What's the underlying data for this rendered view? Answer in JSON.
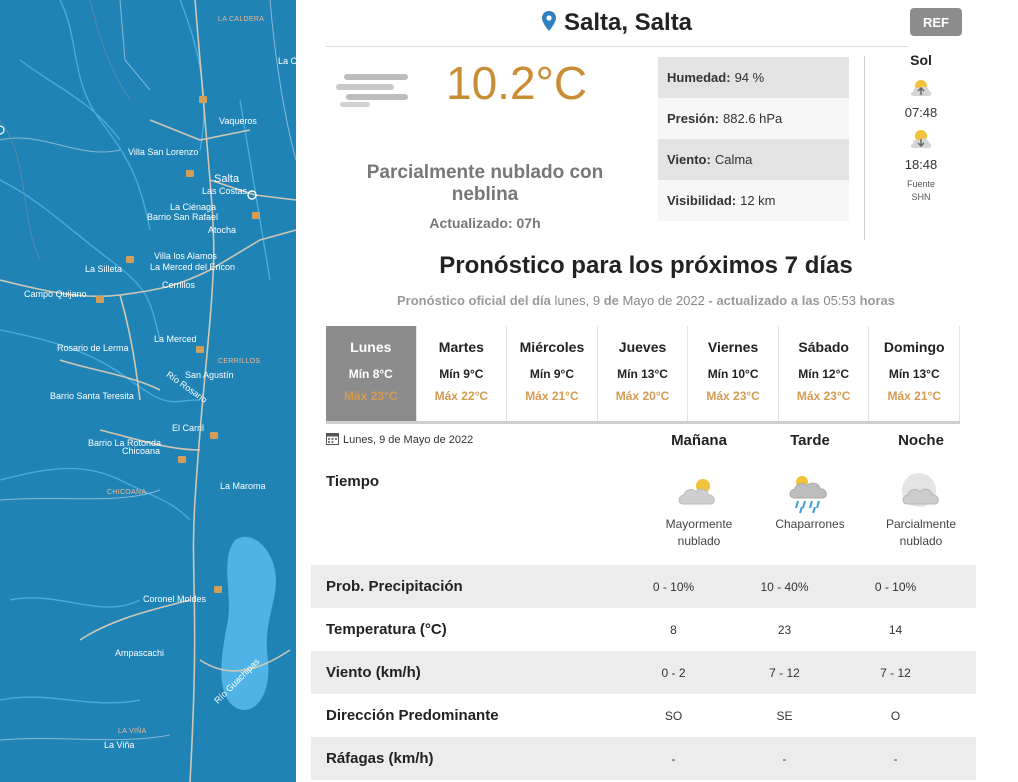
{
  "map": {
    "places": [
      {
        "name": "LA CALDERA",
        "style": "dim"
      },
      {
        "name": "La C",
        "style": "normal"
      },
      {
        "name": "Vaqueros",
        "style": "normal"
      },
      {
        "name": "Villa San Lorenzo",
        "style": "normal"
      },
      {
        "name": "Salta",
        "style": "big"
      },
      {
        "name": "Las Costas",
        "style": "normal"
      },
      {
        "name": "La Ciénaga",
        "style": "normal"
      },
      {
        "name": "Barrio San Rafael",
        "style": "normal"
      },
      {
        "name": "Atocha",
        "style": "normal"
      },
      {
        "name": "Villa los Alamos",
        "style": "normal"
      },
      {
        "name": "La Merced del Encon",
        "style": "normal"
      },
      {
        "name": "La Silleta",
        "style": "normal"
      },
      {
        "name": "Cerrillos",
        "style": "normal"
      },
      {
        "name": "Campo Quijano",
        "style": "normal"
      },
      {
        "name": "La Merced",
        "style": "normal"
      },
      {
        "name": "Rosario de Lerma",
        "style": "normal"
      },
      {
        "name": "CERRILLOS",
        "style": "dim"
      },
      {
        "name": "San Agustín",
        "style": "normal"
      },
      {
        "name": "Barrio Santa Teresita",
        "style": "normal"
      },
      {
        "name": "Río Rosario",
        "style": "normal"
      },
      {
        "name": "El Carril",
        "style": "normal"
      },
      {
        "name": "Barrio La Rotonda",
        "style": "normal"
      },
      {
        "name": "Chicoana",
        "style": "normal"
      },
      {
        "name": "CHICOANA",
        "style": "dim"
      },
      {
        "name": "La Maroma",
        "style": "normal"
      },
      {
        "name": "Coronel Moldes",
        "style": "normal"
      },
      {
        "name": "Ampascachi",
        "style": "normal"
      },
      {
        "name": "Río Guachipas",
        "style": "normal"
      },
      {
        "name": "LA VIÑA",
        "style": "dim"
      },
      {
        "name": "La Viña",
        "style": "normal"
      }
    ]
  },
  "header": {
    "city": "Salta, Salta",
    "ref_label": "REF"
  },
  "current": {
    "temperature": "10.2°C",
    "description": "Parcialmente nublado con neblina",
    "updated_label": "Actualizado:",
    "updated_value": "07h",
    "icon": "fog-icon"
  },
  "stats": [
    {
      "label": "Humedad:",
      "value": "94 %"
    },
    {
      "label": "Presión:",
      "value": "882.6 hPa"
    },
    {
      "label": "Viento:",
      "value": "Calma"
    },
    {
      "label": "Visibilidad:",
      "value": "12 km"
    }
  ],
  "sun": {
    "title": "Sol",
    "sunrise": "07:48",
    "sunset": "18:48",
    "source_line1": "Fuente",
    "source_line2": "SHN"
  },
  "forecast": {
    "title": "Pronóstico para los próximos 7 días",
    "sub_a": "Pronóstico oficial del día",
    "sub_b": "lunes, 9",
    "sub_c": "de",
    "sub_d": "Mayo de 2022",
    "sub_e": "- actualizado a las",
    "sub_f": "05:53",
    "sub_g": "horas",
    "days": [
      {
        "name": "Lunes",
        "min": "Mín 8°C",
        "max": "Máx 23°C",
        "active": true
      },
      {
        "name": "Martes",
        "min": "Mín 9°C",
        "max": "Máx 22°C",
        "active": false
      },
      {
        "name": "Miércoles",
        "min": "Mín 9°C",
        "max": "Máx 21°C",
        "active": false
      },
      {
        "name": "Jueves",
        "min": "Mín 13°C",
        "max": "Máx 20°C",
        "active": false
      },
      {
        "name": "Viernes",
        "min": "Mín 10°C",
        "max": "Máx 23°C",
        "active": false
      },
      {
        "name": "Sábado",
        "min": "Mín 12°C",
        "max": "Máx 23°C",
        "active": false
      },
      {
        "name": "Domingo",
        "min": "Mín 13°C",
        "max": "Máx 21°C",
        "active": false
      }
    ]
  },
  "detail": {
    "date": "Lunes, 9 de Mayo de 2022",
    "periods": [
      "Mañana",
      "Tarde",
      "Noche"
    ],
    "tiempo_label": "Tiempo",
    "conditions": [
      {
        "line1": "Mayormente",
        "line2": "nublado",
        "icon": "mostly-cloudy-icon"
      },
      {
        "line1": "Chaparrones",
        "line2": "",
        "icon": "showers-icon"
      },
      {
        "line1": "Parcialmente",
        "line2": "nublado",
        "icon": "partly-cloudy-night-icon"
      }
    ],
    "rows": [
      {
        "label": "Prob. Precipitación",
        "values": [
          "0 - 10%",
          "10 - 40%",
          "0 - 10%"
        ]
      },
      {
        "label": "Temperatura (°C)",
        "values": [
          "8",
          "23",
          "14"
        ]
      },
      {
        "label": "Viento (km/h)",
        "values": [
          "0 - 2",
          "7 - 12",
          "7 - 12"
        ]
      },
      {
        "label": "Dirección Predominante",
        "values": [
          "SO",
          "SE",
          "O"
        ]
      },
      {
        "label": "Ráfagas (km/h)",
        "values": [
          "-",
          "-",
          "-"
        ]
      }
    ]
  },
  "colors": {
    "accent_temp": "#c98d36",
    "max_temp": "#d69b52",
    "map_bg": "#1f83b6",
    "active_day": "#8c8c8c"
  }
}
